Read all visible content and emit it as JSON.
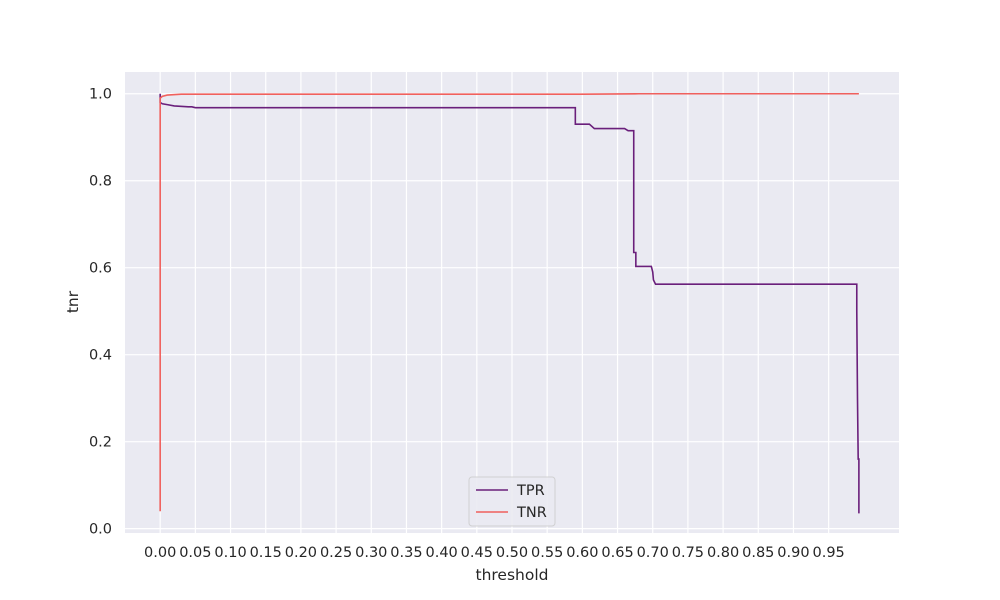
{
  "chart_data": {
    "type": "line",
    "title": "",
    "xlabel": "threshold",
    "ylabel": "tnr",
    "xlim": [
      -0.05,
      1.05
    ],
    "ylim": [
      -0.01,
      1.05
    ],
    "x_ticks": [
      0.0,
      0.05,
      0.1,
      0.15,
      0.2,
      0.25,
      0.3,
      0.35,
      0.4,
      0.45,
      0.5,
      0.55,
      0.6,
      0.65,
      0.7,
      0.75,
      0.8,
      0.85,
      0.9,
      0.95
    ],
    "x_tick_labels": [
      "0.00",
      "0.05",
      "0.10",
      "0.15",
      "0.20",
      "0.25",
      "0.30",
      "0.35",
      "0.40",
      "0.45",
      "0.50",
      "0.55",
      "0.60",
      "0.65",
      "0.70",
      "0.75",
      "0.80",
      "0.85",
      "0.90",
      "0.95"
    ],
    "y_ticks": [
      0.0,
      0.2,
      0.4,
      0.6,
      0.8,
      1.0
    ],
    "y_tick_labels": [
      "0.0",
      "0.2",
      "0.4",
      "0.6",
      "0.8",
      "1.0"
    ],
    "grid": true,
    "background_color": "#eaeaf2",
    "legend_position": "lower-center",
    "series": [
      {
        "name": "TPR",
        "color": "#6a1f7b",
        "points": [
          [
            0.0,
            1.0
          ],
          [
            0.0,
            0.98
          ],
          [
            0.003,
            0.977
          ],
          [
            0.01,
            0.975
          ],
          [
            0.02,
            0.972
          ],
          [
            0.04,
            0.97
          ],
          [
            0.045,
            0.97
          ],
          [
            0.05,
            0.968
          ],
          [
            0.59,
            0.968
          ],
          [
            0.59,
            0.93
          ],
          [
            0.6,
            0.93
          ],
          [
            0.61,
            0.93
          ],
          [
            0.617,
            0.92
          ],
          [
            0.66,
            0.92
          ],
          [
            0.665,
            0.915
          ],
          [
            0.673,
            0.915
          ],
          [
            0.673,
            0.635
          ],
          [
            0.676,
            0.635
          ],
          [
            0.676,
            0.603
          ],
          [
            0.698,
            0.603
          ],
          [
            0.7,
            0.59
          ],
          [
            0.701,
            0.572
          ],
          [
            0.704,
            0.562
          ],
          [
            0.99,
            0.562
          ],
          [
            0.99,
            0.5
          ],
          [
            0.991,
            0.3
          ],
          [
            0.992,
            0.16
          ],
          [
            0.993,
            0.16
          ],
          [
            0.993,
            0.035
          ]
        ]
      },
      {
        "name": "TNR",
        "color": "#f0605d",
        "points": [
          [
            0.0,
            0.04
          ],
          [
            0.0,
            0.99
          ],
          [
            0.003,
            0.994
          ],
          [
            0.01,
            0.997
          ],
          [
            0.03,
            0.999
          ],
          [
            0.05,
            0.999
          ],
          [
            0.6,
            0.999
          ],
          [
            0.68,
            1.0
          ],
          [
            0.993,
            1.0
          ]
        ]
      }
    ]
  }
}
